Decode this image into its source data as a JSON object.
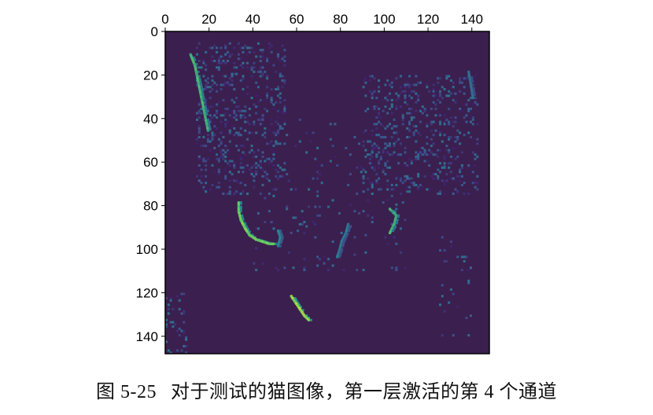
{
  "chart_data": {
    "type": "heatmap",
    "title": "",
    "xlabel": "",
    "ylabel": "",
    "x_ticks": [
      0,
      20,
      40,
      60,
      80,
      100,
      120,
      140
    ],
    "y_ticks": [
      0,
      20,
      40,
      60,
      80,
      100,
      120,
      140
    ],
    "xlim": [
      0,
      148
    ],
    "ylim": [
      148,
      0
    ],
    "x_axis_position": "top",
    "colormap": "viridis",
    "background_color": "#3b1f4f",
    "grid": false,
    "legend": "none",
    "description_of_values": "sparse activation map of cat image; mostly near-zero (dark purple) with bright green/yellow edge activations",
    "highlights": [
      {
        "x": [
          11,
          13,
          14,
          15,
          16,
          17,
          18,
          19
        ],
        "y": [
          10,
          15,
          20,
          25,
          30,
          35,
          40,
          45
        ],
        "intensity": 0.7
      },
      {
        "x": [
          33,
          33,
          34,
          36,
          38,
          41,
          44,
          47,
          49
        ],
        "y": [
          78,
          82,
          86,
          90,
          93,
          95,
          96,
          97,
          97
        ],
        "intensity": 0.85
      },
      {
        "x": [
          51,
          52,
          51
        ],
        "y": [
          91,
          94,
          98
        ],
        "intensity": 0.5
      },
      {
        "x": [
          83,
          82,
          80,
          79,
          78
        ],
        "y": [
          88,
          92,
          96,
          100,
          103
        ],
        "intensity": 0.45
      },
      {
        "x": [
          102,
          105,
          104,
          102
        ],
        "y": [
          81,
          84,
          88,
          92
        ],
        "intensity": 0.7
      },
      {
        "x": [
          57,
          59,
          61,
          63,
          65
        ],
        "y": [
          121,
          124,
          127,
          130,
          132
        ],
        "intensity": 0.95
      },
      {
        "x": [
          138,
          139,
          140
        ],
        "y": [
          18,
          24,
          30
        ],
        "intensity": 0.4
      }
    ],
    "scatter_regions": [
      {
        "x": [
          14,
          55
        ],
        "y": [
          5,
          75
        ],
        "density": 0.16
      },
      {
        "x": [
          90,
          143
        ],
        "y": [
          20,
          75
        ],
        "density": 0.16
      },
      {
        "x": [
          0,
          10
        ],
        "y": [
          120,
          148
        ],
        "density": 0.15
      },
      {
        "x": [
          40,
          110
        ],
        "y": [
          40,
          110
        ],
        "density": 0.03
      },
      {
        "x": [
          125,
          140
        ],
        "y": [
          90,
          140
        ],
        "density": 0.04
      }
    ]
  },
  "caption": {
    "figure_number": "图 5-25",
    "text": "对于测试的猫图像，第一层激活的第 4 个通道"
  }
}
